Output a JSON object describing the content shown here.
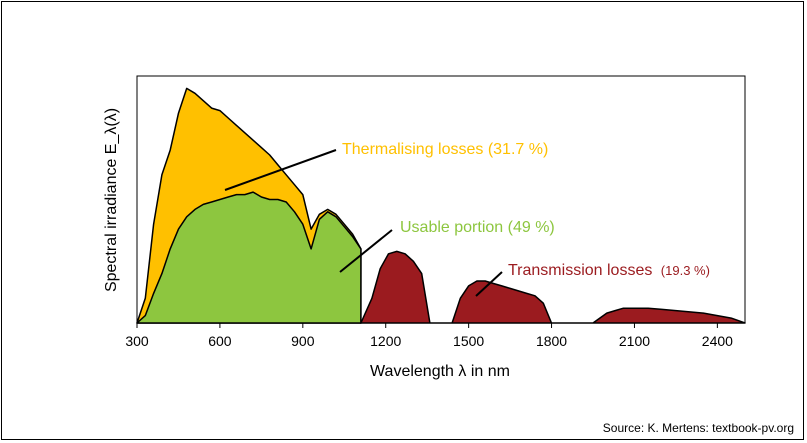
{
  "colors": {
    "thermalising": "#FFC000",
    "usable": "#8DC63F",
    "transmission": "#9B1B1F",
    "outline": "#000000",
    "frame": "#000000"
  },
  "chart_data": {
    "type": "area",
    "xlabel": "Wavelength λ in nm",
    "ylabel": "Spectral irradiance E_λ(λ)",
    "xlim": [
      300,
      2500
    ],
    "x_ticks": [
      "300",
      "600",
      "900",
      "1200",
      "1500",
      "1800",
      "2100",
      "2400"
    ],
    "y_scale": "relative (no values printed)",
    "grid": false,
    "series": [
      {
        "name": "Thermalising losses (31.7 %)",
        "color": "#FFC000",
        "x": [
          300,
          330,
          360,
          390,
          420,
          450,
          480,
          510,
          540,
          570,
          600,
          630,
          660,
          690,
          720,
          750,
          780,
          810,
          840,
          870,
          900,
          930,
          960,
          990,
          1020,
          1050,
          1080,
          1110
        ],
        "y": [
          0.0,
          0.1,
          0.4,
          0.6,
          0.7,
          0.85,
          0.95,
          0.93,
          0.9,
          0.87,
          0.86,
          0.83,
          0.8,
          0.77,
          0.74,
          0.71,
          0.68,
          0.64,
          0.6,
          0.56,
          0.52,
          0.38,
          0.44,
          0.46,
          0.44,
          0.4,
          0.36,
          0.3
        ]
      },
      {
        "name": "Usable portion (49 %)",
        "color": "#8DC63F",
        "x": [
          300,
          330,
          360,
          390,
          420,
          450,
          480,
          510,
          540,
          570,
          600,
          630,
          660,
          690,
          720,
          750,
          780,
          810,
          840,
          870,
          900,
          930,
          960,
          990,
          1020,
          1050,
          1080,
          1110
        ],
        "y": [
          0.0,
          0.03,
          0.12,
          0.2,
          0.3,
          0.38,
          0.43,
          0.46,
          0.48,
          0.49,
          0.5,
          0.51,
          0.52,
          0.52,
          0.53,
          0.51,
          0.5,
          0.5,
          0.49,
          0.45,
          0.4,
          0.3,
          0.42,
          0.45,
          0.43,
          0.39,
          0.35,
          0.3
        ]
      },
      {
        "name": "Transmission losses (19.3 %)",
        "color": "#9B1B1F",
        "x": [
          1110,
          1150,
          1180,
          1210,
          1240,
          1270,
          1300,
          1330,
          1360,
          1400,
          1440,
          1470,
          1500,
          1530,
          1560,
          1590,
          1620,
          1650,
          1680,
          1710,
          1740,
          1770,
          1800,
          1850,
          1950,
          2000,
          2030,
          2060,
          2100,
          2150,
          2200,
          2250,
          2300,
          2350,
          2400,
          2450,
          2500
        ],
        "y": [
          0.0,
          0.1,
          0.22,
          0.28,
          0.29,
          0.28,
          0.25,
          0.2,
          0.0,
          0.0,
          0.0,
          0.1,
          0.15,
          0.17,
          0.17,
          0.16,
          0.15,
          0.14,
          0.13,
          0.12,
          0.11,
          0.08,
          0.0,
          0.0,
          0.0,
          0.04,
          0.05,
          0.06,
          0.06,
          0.06,
          0.055,
          0.05,
          0.045,
          0.04,
          0.03,
          0.02,
          0.0
        ]
      }
    ],
    "annotations": {
      "thermalising": "Thermalising losses (31.7 %)",
      "usable": "Usable portion (49 %)",
      "transmission_main": "Transmission losses",
      "transmission_pct": "(19.3 %)"
    },
    "source": "Source: K. Mertens: textbook-pv.org"
  }
}
